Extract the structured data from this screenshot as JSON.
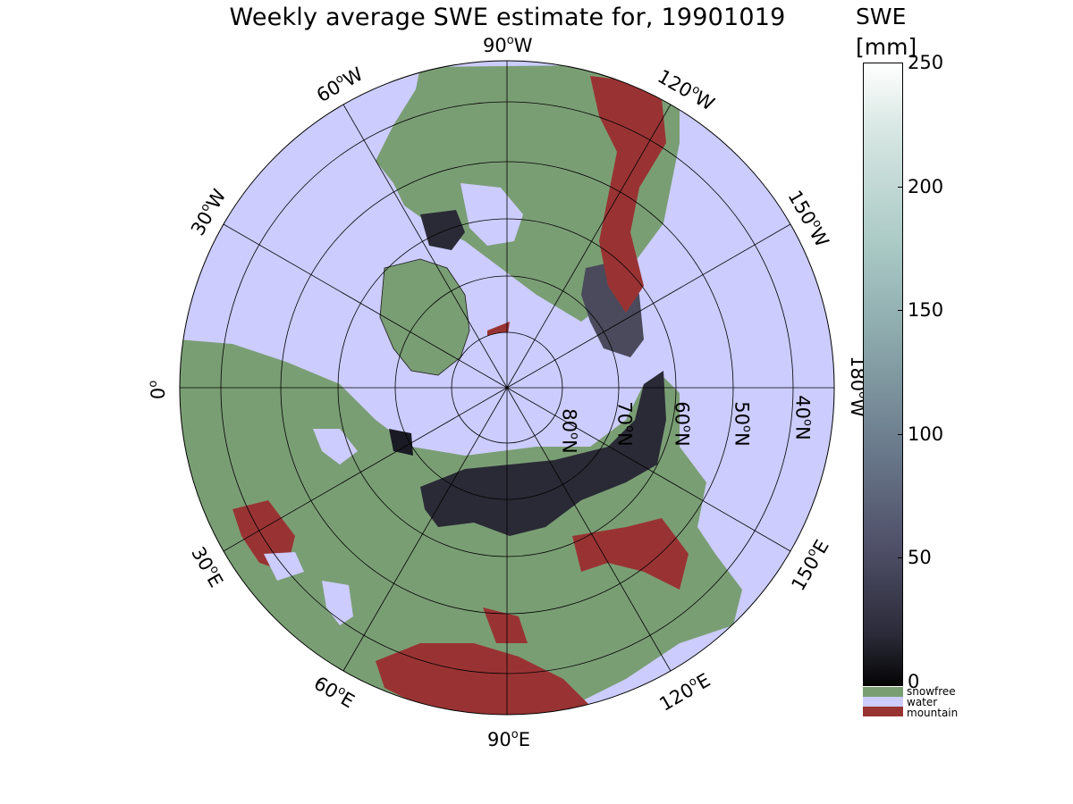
{
  "title": "Weekly average SWE estimate for, 19901019",
  "colorbar": {
    "label": "SWE",
    "unit": "[mm]",
    "ticks": [
      "250",
      "200",
      "150",
      "100",
      "50",
      "0"
    ],
    "range": [
      0,
      250
    ]
  },
  "legend": [
    {
      "label": "snowfree",
      "color": "#7a9e74"
    },
    {
      "label": "water",
      "color": "#ccccff"
    },
    {
      "label": "mountain",
      "color": "#993333"
    }
  ],
  "longitude_labels": {
    "w90": "90",
    "w60": "60",
    "w120": "120",
    "w30": "30",
    "w150": "150",
    "e0": "0",
    "w180": "180",
    "e30": "30",
    "e150": "150",
    "e60": "60",
    "e120": "120",
    "e90": "90",
    "deg": "o",
    "west": "W",
    "east": "E"
  },
  "latitude_labels": [
    "80",
    "70",
    "60",
    "50",
    "40"
  ],
  "lat_suffix": "N",
  "colors": {
    "water": "#ccccff",
    "land": "#7a9e74",
    "mountain": "#993333",
    "snow_low": "#1a1a24",
    "snow_mid": "#4a4a5c"
  }
}
